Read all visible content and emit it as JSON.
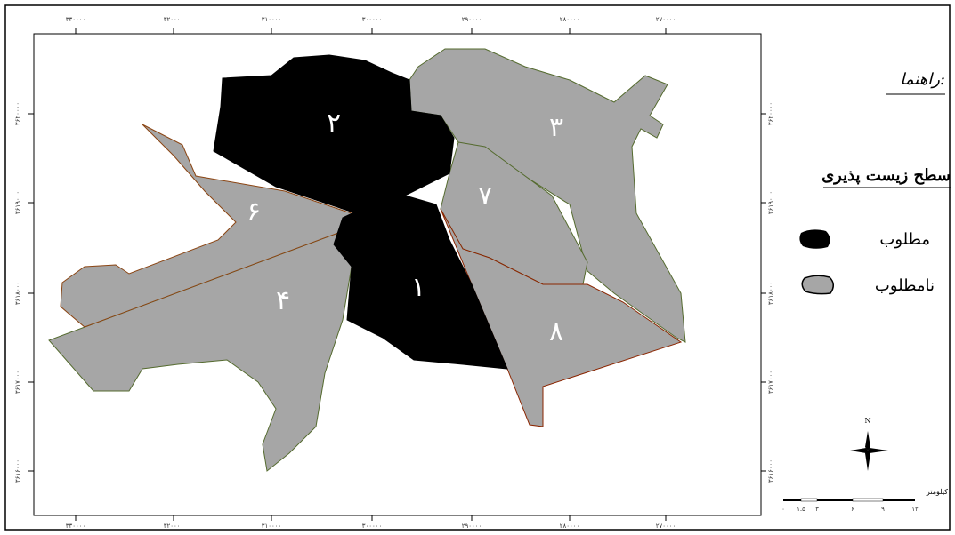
{
  "map": {
    "zones": [
      "۱",
      "۲",
      "۳",
      "۴",
      "۶",
      "۷",
      "۸"
    ],
    "x_ticks": [
      "۳۳۰۰۰۰",
      "۳۲۰۰۰۰",
      "۳۱۰۰۰۰",
      "۳۰۰۰۰۰",
      "۲۹۰۰۰۰",
      "۲۸۰۰۰۰",
      "۲۷۰۰۰۰"
    ],
    "y_ticks": [
      "۳۶۲۰۰۰۰",
      "۳۶۱۹۰۰۰",
      "۳۶۱۸۰۰۰",
      "۳۶۱۷۰۰۰",
      "۳۶۱۶۰۰۰"
    ],
    "north": "N",
    "scale": {
      "unit": "کیلومتر",
      "labels": [
        "۰",
        "۱.۵",
        "۳",
        "۶",
        "۹",
        "۱۲"
      ]
    }
  },
  "legend": {
    "title": "راهنما:",
    "subtitle": "سطح زیست پذیری",
    "items": [
      "مطلوب",
      "نامطلوب"
    ]
  }
}
